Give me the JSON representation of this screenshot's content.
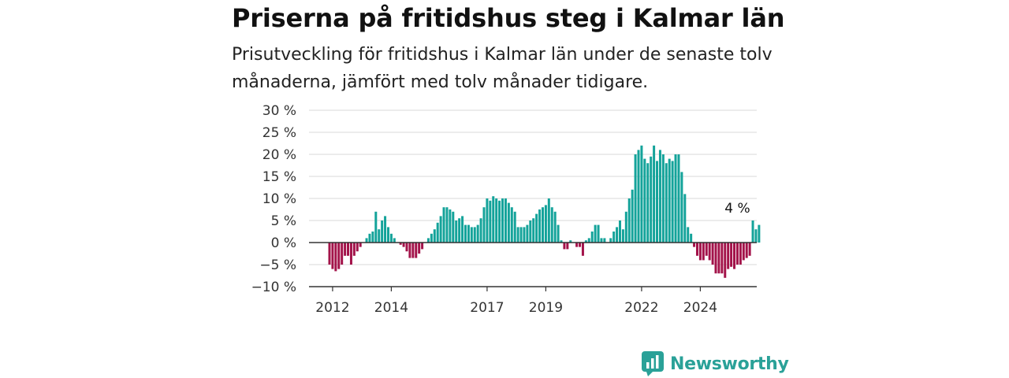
{
  "title": "Priserna på fritidshus steg i Kalmar län",
  "subtitle": "Prisutveckling för fritidshus i Kalmar län under de senaste tolv månaderna, jämfört med tolv månader tidigare.",
  "brand": "Newsworthy",
  "colors": {
    "positive": "#14a39a",
    "negative": "#a3134a",
    "grid": "#d9d9d9",
    "axis": "#333333",
    "brand": "#2aa198"
  },
  "chart_data": {
    "type": "bar",
    "title": "Priserna på fritidshus steg i Kalmar län",
    "subtitle": "Prisutveckling för fritidshus i Kalmar län under de senaste tolv månaderna, jämfört med tolv månader tidigare.",
    "ylim": [
      -10,
      30
    ],
    "y_ticks": [
      -10,
      -5,
      0,
      5,
      10,
      15,
      20,
      25,
      30
    ],
    "y_tick_labels": [
      "−10 %",
      "−5 %",
      "0 %",
      "5 %",
      "10 %",
      "15 %",
      "20 %",
      "25 %",
      "30 %"
    ],
    "x_tick_labels": [
      "2012",
      "2014",
      "2017",
      "2019",
      "2022",
      "2024"
    ],
    "x_tick_index": [
      1,
      20,
      51,
      70,
      101,
      120
    ],
    "grid": true,
    "annotation": {
      "text": "4 %",
      "index": 132
    },
    "values": [
      -5,
      -6,
      -6.5,
      -6,
      -5,
      -3,
      -3,
      -5,
      -3,
      -2,
      -1,
      0,
      1,
      2,
      2.5,
      7,
      3,
      5,
      6,
      3.5,
      2,
      1,
      0,
      -0.5,
      -1,
      -2,
      -3.5,
      -3.5,
      -3.5,
      -2.5,
      -1.5,
      0,
      1,
      2,
      3,
      4.5,
      6,
      8,
      8,
      7.5,
      7,
      5,
      5.5,
      6,
      4,
      4,
      3.5,
      3.5,
      4,
      5.5,
      8,
      10,
      9.5,
      10.5,
      10,
      9.5,
      10,
      10,
      9,
      8,
      7,
      3.5,
      3.5,
      3.5,
      4,
      5,
      5.5,
      6.5,
      7.5,
      8,
      8.5,
      10,
      8,
      7,
      4,
      0.5,
      -1.5,
      -1.5,
      0.5,
      0,
      -1,
      -1,
      -3,
      0.5,
      1,
      2.5,
      4,
      4,
      1,
      1,
      0,
      1,
      2.5,
      3.5,
      5,
      3,
      7,
      10,
      12,
      20,
      21,
      22,
      19,
      18,
      19.5,
      22,
      18.5,
      21,
      20,
      18,
      19,
      18.5,
      20,
      20,
      16,
      11,
      3.5,
      2,
      -1,
      -3,
      -4,
      -4,
      -3,
      -4,
      -5,
      -7,
      -7,
      -7,
      -8,
      -6,
      -5.5,
      -6,
      -5,
      -5,
      -4,
      -3.5,
      -3,
      5,
      3,
      4
    ]
  }
}
